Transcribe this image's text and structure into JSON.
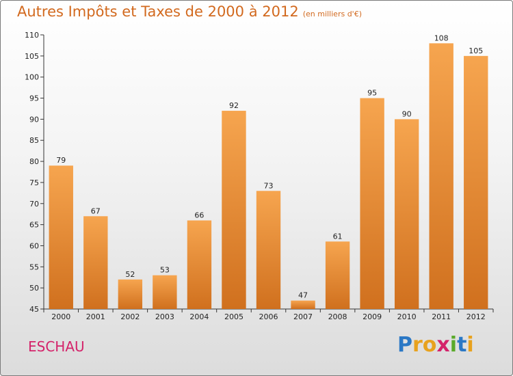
{
  "title": {
    "main": "Autres Impôts et Taxes de 2000 à 2012",
    "unit": "(en milliers d'€)"
  },
  "place": "ESCHAU",
  "logo": {
    "letters": [
      {
        "ch": "P",
        "color": "#2b78c5"
      },
      {
        "ch": "r",
        "color": "#e8a21e"
      },
      {
        "ch": "o",
        "color": "#e8a21e"
      },
      {
        "ch": "x",
        "color": "#d4236a"
      },
      {
        "ch": "i",
        "color": "#5aaa2a"
      },
      {
        "ch": "t",
        "color": "#2b78c5"
      },
      {
        "ch": "i",
        "color": "#e8a21e"
      }
    ]
  },
  "colors": {
    "title": "#d2691e",
    "place": "#d4236a",
    "bar_top": "#f6a54f",
    "bar_bottom": "#d0701e",
    "axis": "#333333",
    "grid": "#cccccc"
  },
  "chart_data": {
    "type": "bar",
    "title": "Autres Impôts et Taxes de 2000 à 2012",
    "subtitle": "(en milliers d'€)",
    "xlabel": "",
    "ylabel": "",
    "categories": [
      "2000",
      "2001",
      "2002",
      "2003",
      "2004",
      "2005",
      "2006",
      "2007",
      "2008",
      "2009",
      "2010",
      "2011",
      "2012"
    ],
    "values": [
      79,
      67,
      52,
      53,
      66,
      92,
      73,
      47,
      61,
      95,
      90,
      108,
      105
    ],
    "ylim": [
      45,
      110
    ],
    "yticks": [
      45,
      50,
      55,
      60,
      65,
      70,
      75,
      80,
      85,
      90,
      95,
      100,
      105,
      110
    ],
    "grid": false,
    "data_labels": true
  }
}
